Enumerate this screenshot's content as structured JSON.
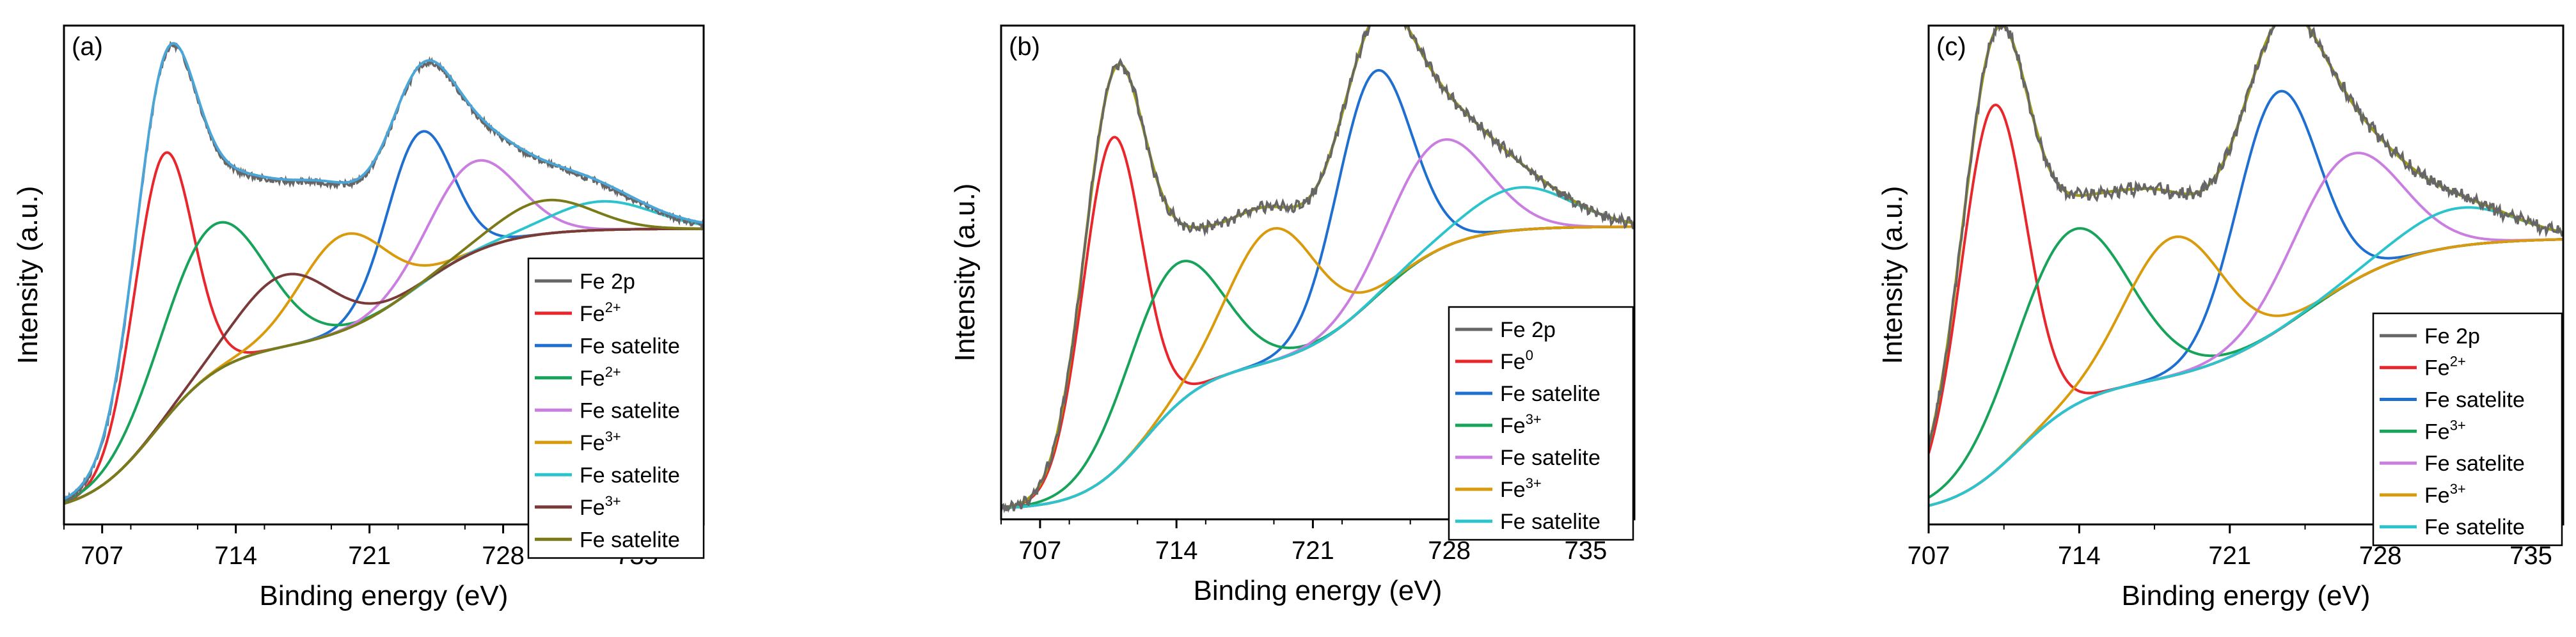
{
  "figure_title": "",
  "chart_data": [
    {
      "type": "line",
      "panel_label": "(a)",
      "xlabel": "Binding energy (eV)",
      "ylabel": "Intensity (a.u.)",
      "x_ticks": [
        "707",
        "714",
        "721",
        "728",
        "735"
      ],
      "x_tick_values": [
        707,
        714,
        721,
        728,
        735
      ],
      "xlim": [
        705.0,
        738.5
      ],
      "ylim": [
        0.0,
        1.0
      ],
      "series": [
        {
          "name": "Fe 2p",
          "label_base": "Fe 2p",
          "label_sup": "",
          "color": "#666666",
          "kind": "spectrum",
          "sigma": 1.0,
          "noise": 0.006
        },
        {
          "name": "Fe2+",
          "label_base": "Fe",
          "label_sup": "2+",
          "color": "#e8262b",
          "kind": "peak",
          "center": 710.2,
          "height": 0.56,
          "sigma": 0.8
        },
        {
          "name": "Fe satelite",
          "label_base": "Fe satelite",
          "label_sup": "",
          "color": "#1f6fd1",
          "kind": "peak",
          "center": 723.6,
          "height": 0.32,
          "sigma": 0.9
        },
        {
          "name": "Fe2+",
          "label_base": "Fe",
          "label_sup": "2+",
          "color": "#17a35a",
          "kind": "peak",
          "center": 712.8,
          "height": 0.31,
          "sigma": 1.4
        },
        {
          "name": "Fe satelite",
          "label_base": "Fe satelite",
          "label_sup": "",
          "color": "#c97ee0",
          "kind": "peak",
          "center": 726.4,
          "height": 0.19,
          "sigma": 1.2
        },
        {
          "name": "Fe3+",
          "label_base": "Fe",
          "label_sup": "3+",
          "color": "#d99b0c",
          "kind": "peak",
          "center": 719.6,
          "height": 0.2,
          "sigma": 1.2
        },
        {
          "name": "Fe satelite",
          "label_base": "Fe satelite",
          "label_sup": "",
          "color": "#2bc4cc",
          "kind": "peak",
          "center": 733.2,
          "height": 0.06,
          "sigma": 1.4
        },
        {
          "name": "Fe3+",
          "label_base": "Fe",
          "label_sup": "3+",
          "color": "#7a3a3a",
          "kind": "peak",
          "center": 716.6,
          "height": 0.15,
          "sigma": 1.3
        },
        {
          "name": "Fe satelite",
          "label_base": "Fe satelite",
          "label_sup": "",
          "color": "#7a7a18",
          "kind": "peak",
          "center": 730.2,
          "height": 0.07,
          "sigma": 1.3
        }
      ],
      "background": {
        "color": "#f28a0f",
        "start": 0.0,
        "end": 0.6,
        "steps": [
          {
            "center": 709.8,
            "height": 0.35,
            "width": 1.8
          },
          {
            "center": 723.4,
            "height": 0.25,
            "width": 2.2
          }
        ]
      }
    },
    {
      "type": "line",
      "panel_label": "(b)",
      "xlabel": "Binding energy (eV)",
      "ylabel": "Intensity (a.u.)",
      "x_ticks": [
        "707",
        "714",
        "721",
        "728",
        "735"
      ],
      "x_tick_values": [
        707,
        714,
        721,
        728,
        735
      ],
      "xlim": [
        705.0,
        737.5
      ],
      "ylim": [
        0.0,
        1.0
      ],
      "series": [
        {
          "name": "Fe 2p",
          "label_base": "Fe 2p",
          "label_sup": "",
          "color": "#666666",
          "kind": "spectrum",
          "sigma": 1.0,
          "noise": 0.008
        },
        {
          "name": "Fe0",
          "label_base": "Fe",
          "label_sup": "0",
          "color": "#e8262b",
          "kind": "peak",
          "center": 710.7,
          "height": 0.71,
          "sigma": 0.8
        },
        {
          "name": "Fe satelite",
          "label_base": "Fe satelite",
          "label_sup": "",
          "color": "#1f6fd1",
          "kind": "peak",
          "center": 724.1,
          "height": 0.48,
          "sigma": 1.0
        },
        {
          "name": "Fe3+",
          "label_base": "Fe",
          "label_sup": "3+",
          "color": "#17a35a",
          "kind": "peak",
          "center": 713.8,
          "height": 0.3,
          "sigma": 1.3
        },
        {
          "name": "Fe satelite",
          "label_base": "Fe satelite",
          "label_sup": "",
          "color": "#c97ee0",
          "kind": "peak",
          "center": 727.4,
          "height": 0.23,
          "sigma": 1.3
        },
        {
          "name": "Fe3+",
          "label_base": "Fe",
          "label_sup": "3+",
          "color": "#d99b0c",
          "kind": "peak",
          "center": 718.9,
          "height": 0.28,
          "sigma": 1.2
        },
        {
          "name": "Fe satelite",
          "label_base": "Fe satelite",
          "label_sup": "",
          "color": "#2bc4cc",
          "kind": "peak",
          "center": 731.6,
          "height": 0.09,
          "sigma": 1.4
        }
      ],
      "fit": {
        "color": "#9c9a10"
      },
      "background": {
        "color": "#7a3a3a",
        "start": 0.0,
        "end": 0.65,
        "steps": [
          {
            "center": 712.4,
            "height": 0.3,
            "width": 1.6
          },
          {
            "center": 724.2,
            "height": 0.3,
            "width": 2.0
          }
        ]
      }
    },
    {
      "type": "line",
      "panel_label": "(c)",
      "xlabel": "Binding energy (eV)",
      "ylabel": "Intensity (a.u.)",
      "x_ticks": [
        "707",
        "714",
        "721",
        "728",
        "735"
      ],
      "x_tick_values": [
        707,
        714,
        721,
        728,
        735
      ],
      "xlim": [
        707.0,
        736.5
      ],
      "ylim": [
        0.0,
        1.0
      ],
      "series": [
        {
          "name": "Fe 2p",
          "label_base": "Fe 2p",
          "label_sup": "",
          "color": "#666666",
          "kind": "spectrum",
          "sigma": 1.0,
          "noise": 0.01
        },
        {
          "name": "Fe2+",
          "label_base": "Fe",
          "label_sup": "2+",
          "color": "#e8262b",
          "kind": "peak",
          "center": 710.0,
          "height": 0.77,
          "sigma": 0.8
        },
        {
          "name": "Fe satelite",
          "label_base": "Fe satelite",
          "label_sup": "",
          "color": "#1f6fd1",
          "kind": "peak",
          "center": 723.2,
          "height": 0.5,
          "sigma": 1.0
        },
        {
          "name": "Fe3+",
          "label_base": "Fe",
          "label_sup": "3+",
          "color": "#17a35a",
          "kind": "peak",
          "center": 713.6,
          "height": 0.37,
          "sigma": 1.4
        },
        {
          "name": "Fe satelite",
          "label_base": "Fe satelite",
          "label_sup": "",
          "color": "#c97ee0",
          "kind": "peak",
          "center": 726.4,
          "height": 0.27,
          "sigma": 1.3
        },
        {
          "name": "Fe3+",
          "label_base": "Fe",
          "label_sup": "3+",
          "color": "#d99b0c",
          "kind": "peak",
          "center": 718.4,
          "height": 0.29,
          "sigma": 1.2
        },
        {
          "name": "Fe satelite",
          "label_base": "Fe satelite",
          "label_sup": "",
          "color": "#2bc4cc",
          "kind": "peak",
          "center": 731.6,
          "height": 0.08,
          "sigma": 1.4
        }
      ],
      "fit": {
        "color": "#9c9a10"
      },
      "background": {
        "color": "#7a3a3a",
        "start": 0.0,
        "end": 0.58,
        "steps": [
          {
            "center": 711.2,
            "height": 0.27,
            "width": 1.6
          },
          {
            "center": 724.5,
            "height": 0.31,
            "width": 2.5
          }
        ]
      }
    }
  ]
}
